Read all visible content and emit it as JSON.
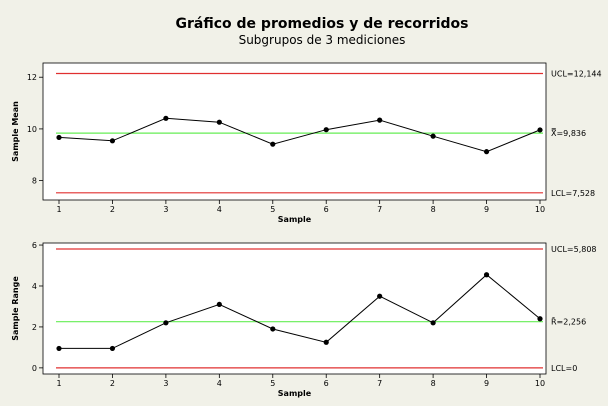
{
  "title": "Gráfico de promedios y de recorridos",
  "subtitle": "Subgrupos de 3 mediciones",
  "chart_data": [
    {
      "type": "line",
      "xlabel": "Sample",
      "ylabel": "Sample Mean",
      "x": [
        1,
        2,
        3,
        4,
        5,
        6,
        7,
        8,
        9,
        10
      ],
      "values": [
        9.67,
        9.54,
        10.41,
        10.26,
        9.41,
        9.97,
        10.34,
        9.72,
        9.12,
        9.96
      ],
      "xlim": [
        1,
        10
      ],
      "ylim": [
        7.25,
        12.55
      ],
      "yticks": [
        8,
        10,
        12
      ],
      "ucl": 12.144,
      "center": 9.836,
      "lcl": 7.528,
      "ucl_label": "UCL=12,144",
      "center_label": "X̿=9,836",
      "lcl_label": "LCL=7,528",
      "colors": {
        "limits": "#e03030",
        "center": "#66ee55",
        "series": "#000000"
      }
    },
    {
      "type": "line",
      "xlabel": "Sample",
      "ylabel": "Sample Range",
      "x": [
        1,
        2,
        3,
        4,
        5,
        6,
        7,
        8,
        9,
        10
      ],
      "values": [
        0.95,
        0.95,
        2.2,
        3.1,
        1.9,
        1.25,
        3.5,
        2.2,
        4.55,
        2.4
      ],
      "xlim": [
        1,
        10
      ],
      "ylim": [
        -0.3,
        6.1
      ],
      "yticks": [
        0,
        2,
        4,
        6
      ],
      "ucl": 5.808,
      "center": 2.256,
      "lcl": 0,
      "ucl_label": "UCL=5,808",
      "center_label": "R̄=2,256",
      "lcl_label": "LCL=0",
      "colors": {
        "limits": "#e03030",
        "center": "#66ee55",
        "series": "#000000"
      }
    }
  ]
}
